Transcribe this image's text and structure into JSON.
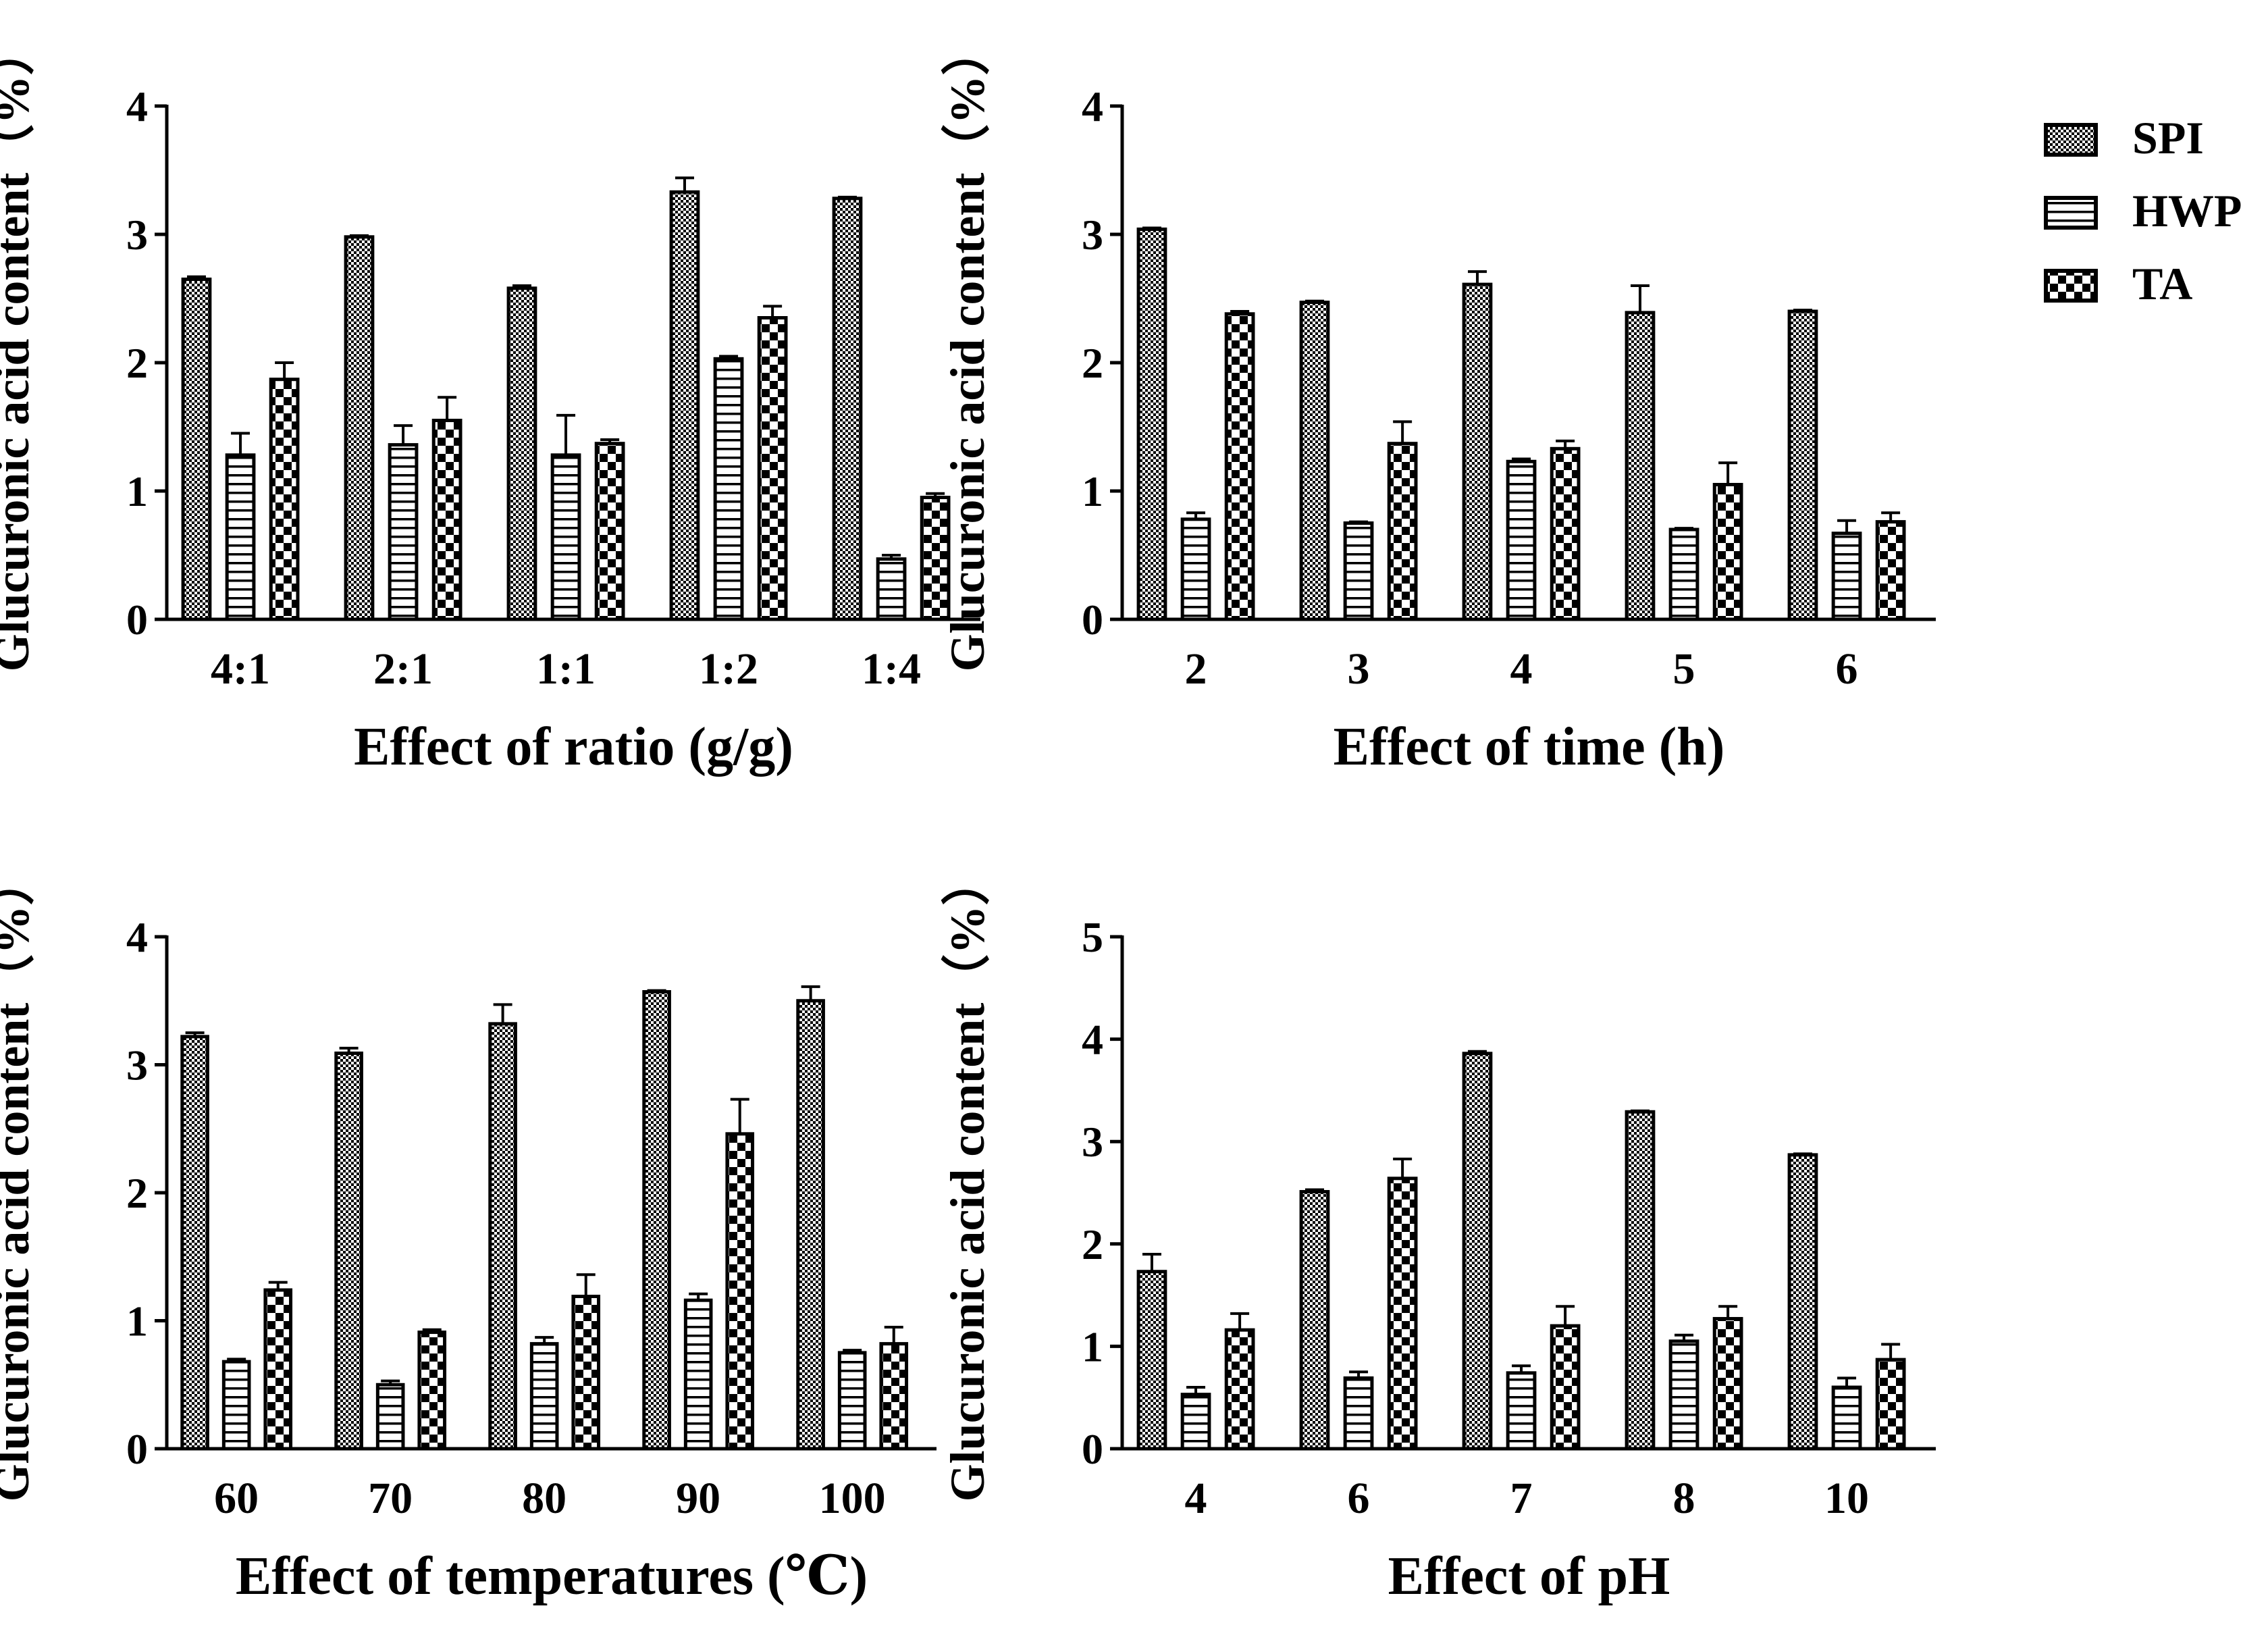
{
  "chart_data": [
    {
      "type": "bar",
      "xlabel": "Effect of ratio (g/g)",
      "ylabel": "Glucuronic acid content（%）",
      "ylim": [
        0,
        4
      ],
      "yticks": [
        "0",
        "1",
        "2",
        "3",
        "4"
      ],
      "categories": [
        "4:1",
        "2:1",
        "1:1",
        "1:2",
        "1:4"
      ],
      "series": [
        {
          "name": "SPI",
          "values": [
            2.65,
            2.98,
            2.58,
            3.33,
            3.28
          ],
          "errors": [
            0.02,
            0.01,
            0.02,
            0.11,
            0.01
          ]
        },
        {
          "name": "HWP",
          "values": [
            1.28,
            1.36,
            1.28,
            2.03,
            0.47
          ],
          "errors": [
            0.17,
            0.15,
            0.31,
            0.02,
            0.03
          ]
        },
        {
          "name": "TA",
          "values": [
            1.87,
            1.55,
            1.37,
            2.35,
            0.95
          ],
          "errors": [
            0.13,
            0.18,
            0.03,
            0.09,
            0.03
          ]
        }
      ]
    },
    {
      "type": "bar",
      "xlabel": "Effect of time (h)",
      "ylabel": "Glucuronic acid content（%）",
      "ylim": [
        0,
        4
      ],
      "yticks": [
        "0",
        "1",
        "2",
        "3",
        "4"
      ],
      "categories": [
        "2",
        "3",
        "4",
        "5",
        "6"
      ],
      "series": [
        {
          "name": "SPI",
          "values": [
            3.04,
            2.47,
            2.61,
            2.39,
            2.4
          ],
          "errors": [
            0.01,
            0.01,
            0.1,
            0.21,
            0.01
          ]
        },
        {
          "name": "HWP",
          "values": [
            0.78,
            0.75,
            1.23,
            0.7,
            0.67
          ],
          "errors": [
            0.05,
            0.01,
            0.02,
            0.01,
            0.1
          ]
        },
        {
          "name": "TA",
          "values": [
            2.38,
            1.37,
            1.33,
            1.05,
            0.76
          ],
          "errors": [
            0.02,
            0.17,
            0.06,
            0.17,
            0.07
          ]
        }
      ]
    },
    {
      "type": "bar",
      "xlabel": "Effect of temperatures (℃)",
      "ylabel": "Glucuronic acid content（%）",
      "ylim": [
        0,
        4
      ],
      "yticks": [
        "0",
        "1",
        "2",
        "3",
        "4"
      ],
      "categories": [
        "60",
        "70",
        "80",
        "90",
        "100"
      ],
      "series": [
        {
          "name": "SPI",
          "values": [
            3.22,
            3.09,
            3.32,
            3.57,
            3.5
          ],
          "errors": [
            0.03,
            0.04,
            0.15,
            0.01,
            0.11
          ]
        },
        {
          "name": "HWP",
          "values": [
            0.68,
            0.5,
            0.82,
            1.16,
            0.75
          ],
          "errors": [
            0.02,
            0.03,
            0.05,
            0.05,
            0.02
          ]
        },
        {
          "name": "TA",
          "values": [
            1.24,
            0.91,
            1.19,
            2.46,
            0.82
          ],
          "errors": [
            0.06,
            0.02,
            0.17,
            0.27,
            0.13
          ]
        }
      ]
    },
    {
      "type": "bar",
      "xlabel": "Effect of pH",
      "ylabel": "Glucuronic acid content（%）",
      "ylim": [
        0,
        5
      ],
      "yticks": [
        "0",
        "1",
        "2",
        "3",
        "4",
        "5"
      ],
      "categories": [
        "4",
        "6",
        "7",
        "8",
        "10"
      ],
      "series": [
        {
          "name": "SPI",
          "values": [
            1.73,
            2.51,
            3.86,
            3.29,
            2.87
          ],
          "errors": [
            0.17,
            0.02,
            0.02,
            0.01,
            0.01
          ]
        },
        {
          "name": "HWP",
          "values": [
            0.53,
            0.69,
            0.74,
            1.05,
            0.6
          ],
          "errors": [
            0.07,
            0.06,
            0.07,
            0.06,
            0.09
          ]
        },
        {
          "name": "TA",
          "values": [
            1.16,
            2.64,
            1.2,
            1.27,
            0.87
          ],
          "errors": [
            0.16,
            0.19,
            0.19,
            0.12,
            0.15
          ]
        }
      ]
    }
  ],
  "legend": {
    "placement": "top-right",
    "items": [
      {
        "name": "SPI",
        "pattern": "checker"
      },
      {
        "name": "HWP",
        "pattern": "horizontal-stripes"
      },
      {
        "name": "TA",
        "pattern": "large-checker"
      }
    ]
  },
  "colors": {
    "ink": "#000000",
    "background": "#ffffff"
  }
}
